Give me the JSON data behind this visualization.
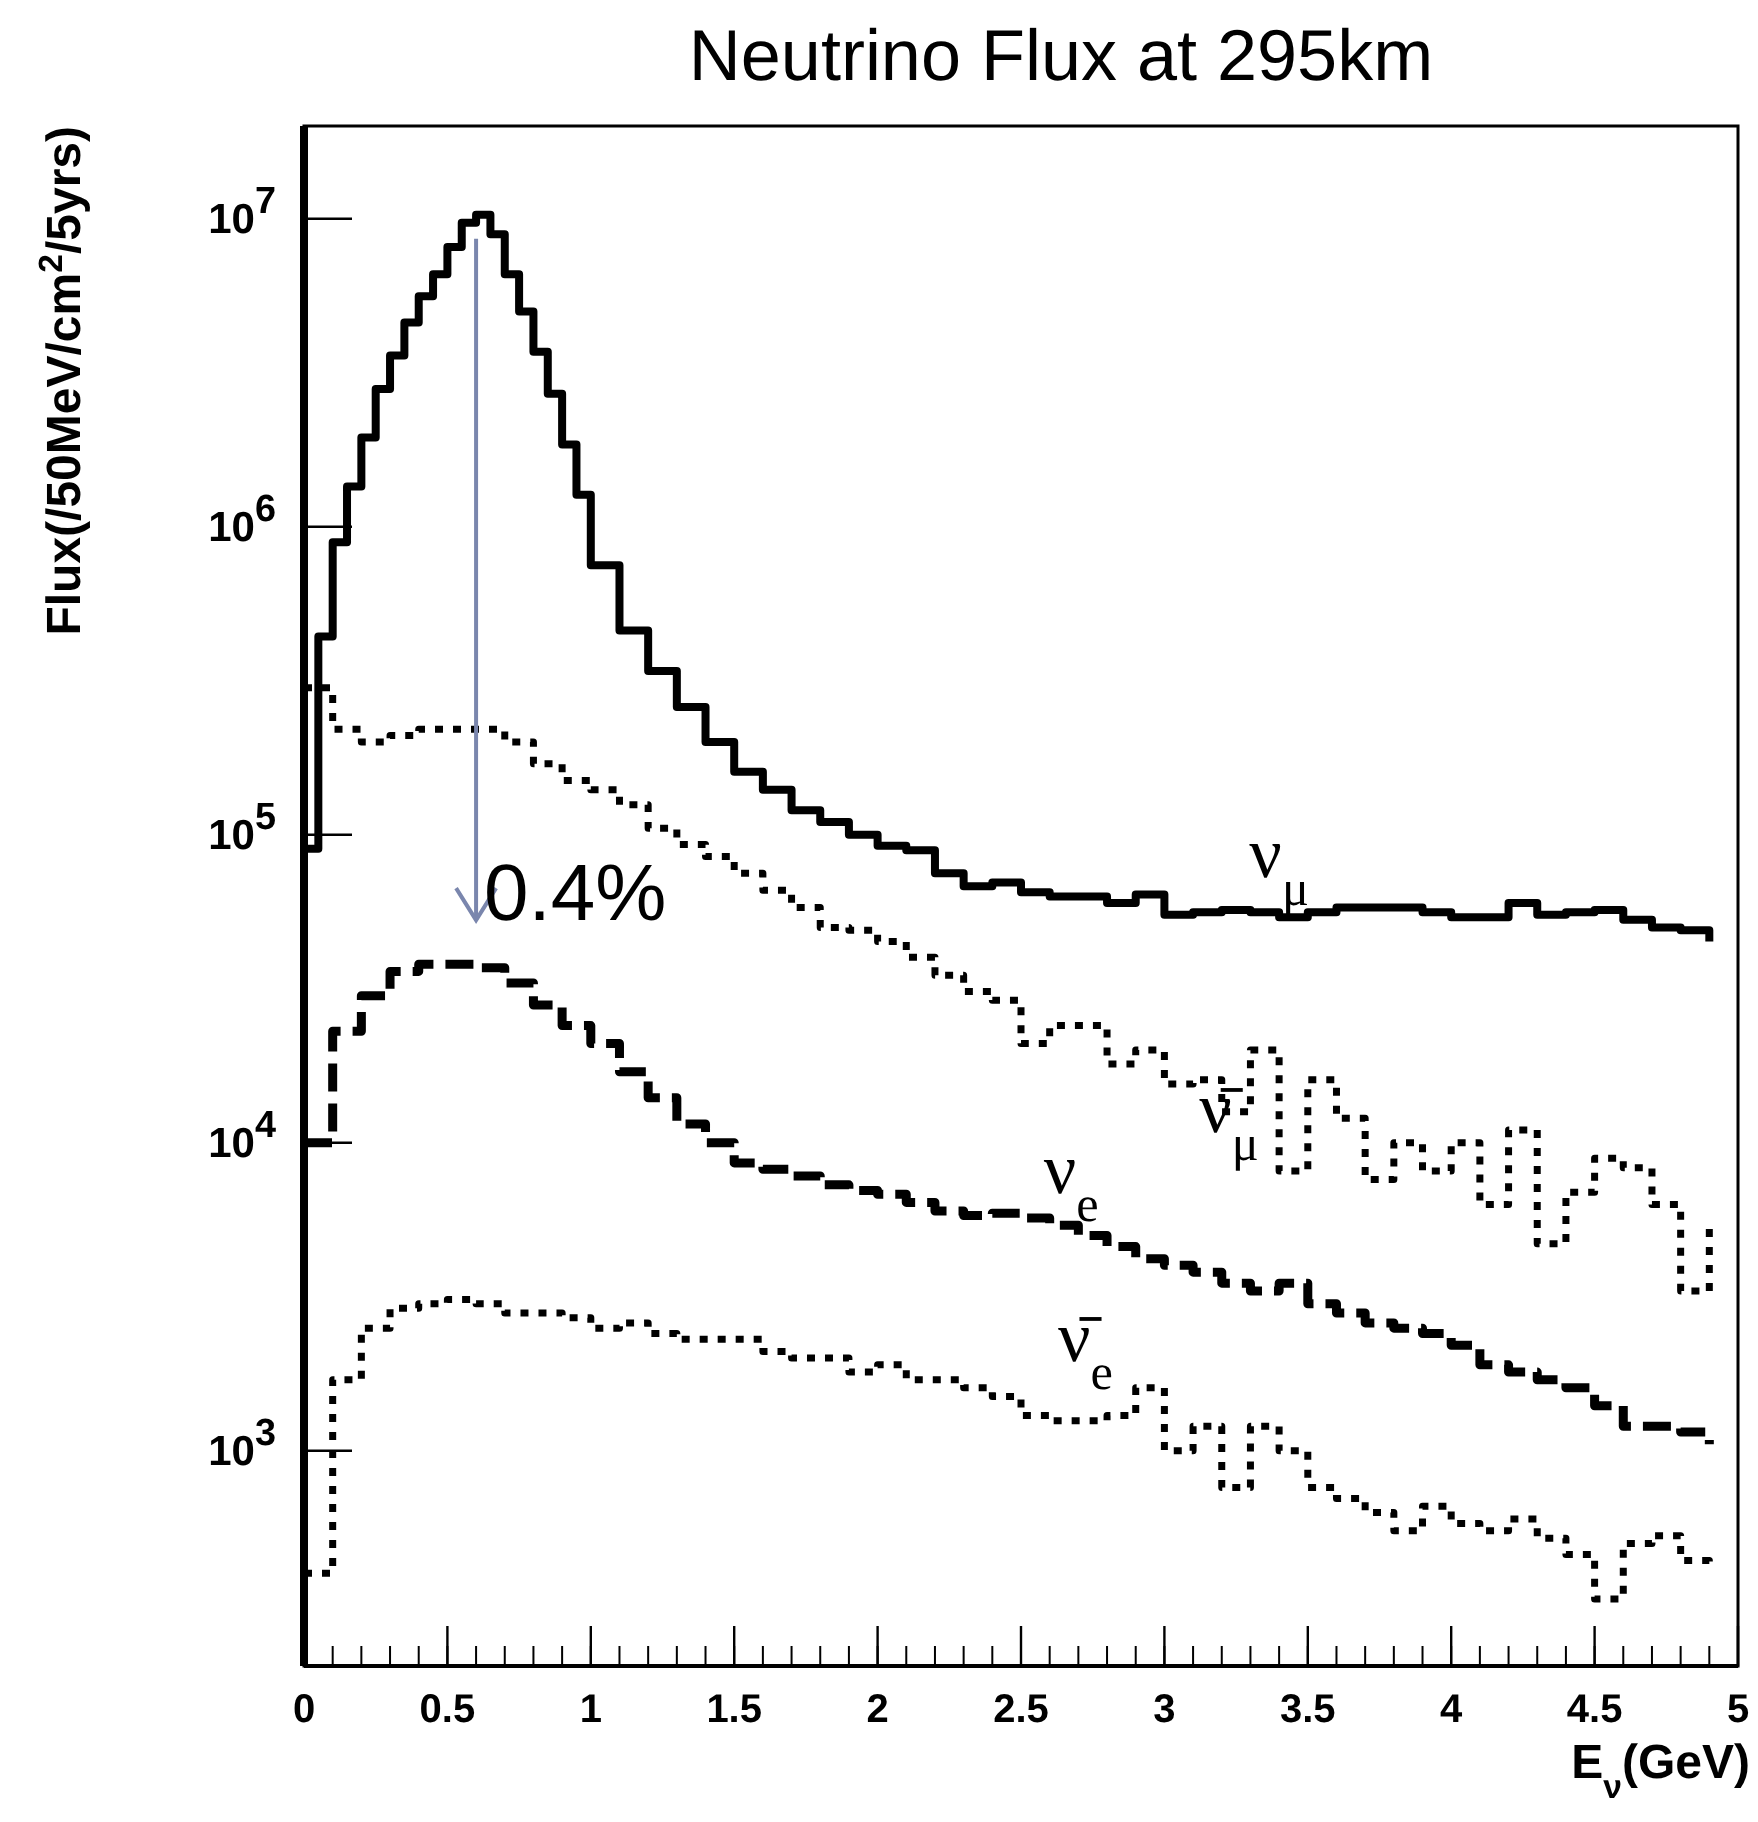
{
  "chart_data": {
    "type": "step",
    "title": "Neutrino Flux at 295km",
    "xlabel": "E$_{ν}$(GeV)",
    "ylabel": "Flux(/50MeV/cm$^{2}$/5yrs)",
    "log": "y",
    "grid": false,
    "xlim": [
      0,
      5
    ],
    "ylim": [
      200,
      20000000
    ],
    "xticks": [
      0,
      0.5,
      1,
      1.5,
      2,
      2.5,
      3,
      3.5,
      4,
      4.5,
      5
    ],
    "yticks": [
      {
        "value": 1000,
        "label": "10$^{3}$"
      },
      {
        "value": 10000,
        "label": "10$^{4}$"
      },
      {
        "value": 100000,
        "label": "10$^{5}$"
      },
      {
        "value": 1000000,
        "label": "10$^{6}$"
      },
      {
        "value": 10000000,
        "label": "10$^{7}$"
      }
    ],
    "annotations": [
      "0.4%"
    ],
    "series": [
      {
        "name": "ν$_{μ}$",
        "color": "#000000",
        "line_style": "solid",
        "x": [
          0,
          0.05,
          0.1,
          0.15,
          0.2,
          0.25,
          0.3,
          0.35,
          0.4,
          0.45,
          0.5,
          0.55,
          0.6,
          0.65,
          0.7,
          0.75,
          0.8,
          0.85,
          0.9,
          0.95,
          1.0,
          1.1,
          1.2,
          1.3,
          1.4,
          1.5,
          1.6,
          1.7,
          1.8,
          1.9,
          2.0,
          2.1,
          2.2,
          2.3,
          2.4,
          2.5,
          2.6,
          2.7,
          2.8,
          2.9,
          3.0,
          3.1,
          3.2,
          3.3,
          3.4,
          3.5,
          3.6,
          3.7,
          3.8,
          3.9,
          4.0,
          4.1,
          4.2,
          4.3,
          4.4,
          4.5,
          4.6,
          4.7,
          4.8,
          4.9
        ],
        "values": [
          90000,
          440000,
          890000,
          1350000,
          1950000,
          2800000,
          3600000,
          4600000,
          5600000,
          6600000,
          8100000,
          9700000,
          10300000,
          8900000,
          6600000,
          5000000,
          3700000,
          2700000,
          1850000,
          1270000,
          750000,
          460000,
          340000,
          260000,
          200000,
          160000,
          140000,
          120000,
          110000,
          100000,
          92000,
          89000,
          75000,
          68000,
          70000,
          65000,
          63000,
          63000,
          60000,
          64000,
          55000,
          56000,
          57000,
          56000,
          54000,
          56000,
          58000,
          58000,
          58000,
          56000,
          54000,
          54000,
          60000,
          55000,
          56000,
          57000,
          53000,
          50000,
          49000,
          45000
        ]
      },
      {
        "name": "ν̄$_{μ}$",
        "color": "#000000",
        "line_style": "dotted",
        "x": [
          0,
          0.1,
          0.2,
          0.3,
          0.4,
          0.5,
          0.6,
          0.7,
          0.8,
          0.9,
          1.0,
          1.1,
          1.2,
          1.3,
          1.4,
          1.5,
          1.6,
          1.7,
          1.8,
          1.9,
          2.0,
          2.1,
          2.2,
          2.3,
          2.4,
          2.5,
          2.6,
          2.7,
          2.8,
          2.9,
          3.0,
          3.1,
          3.2,
          3.3,
          3.4,
          3.5,
          3.6,
          3.7,
          3.8,
          3.9,
          4.0,
          4.1,
          4.2,
          4.3,
          4.4,
          4.5,
          4.6,
          4.7,
          4.8,
          4.9
        ],
        "values": [
          300000,
          220000,
          200000,
          210000,
          220000,
          220000,
          220000,
          200000,
          170000,
          150000,
          140000,
          125000,
          105000,
          93000,
          85000,
          75000,
          66000,
          58000,
          50000,
          49000,
          45000,
          40000,
          35000,
          31000,
          29000,
          21000,
          24000,
          24000,
          18000,
          20000,
          15500,
          16000,
          12600,
          20000,
          8100,
          16000,
          12000,
          7600,
          10000,
          8100,
          10000,
          6300,
          11000,
          4700,
          6900,
          8900,
          8300,
          6300,
          3300,
          5600
        ]
      },
      {
        "name": "ν$_{e}$",
        "color": "#000000",
        "line_style": "dashed",
        "x": [
          0,
          0.1,
          0.2,
          0.3,
          0.4,
          0.5,
          0.6,
          0.7,
          0.8,
          0.9,
          1.0,
          1.1,
          1.2,
          1.3,
          1.4,
          1.5,
          1.6,
          1.7,
          1.8,
          1.9,
          2.0,
          2.1,
          2.2,
          2.3,
          2.4,
          2.5,
          2.6,
          2.7,
          2.8,
          2.9,
          3.0,
          3.1,
          3.2,
          3.3,
          3.4,
          3.5,
          3.6,
          3.7,
          3.8,
          3.9,
          4.0,
          4.1,
          4.2,
          4.3,
          4.4,
          4.5,
          4.6,
          4.7,
          4.8,
          4.9
        ],
        "values": [
          10000,
          23000,
          30000,
          36000,
          38000,
          38000,
          37000,
          33000,
          28000,
          24000,
          21000,
          17000,
          14000,
          11500,
          10000,
          8600,
          8200,
          7800,
          7300,
          7000,
          6800,
          6400,
          6000,
          5800,
          5900,
          5700,
          5400,
          5000,
          4600,
          4200,
          4000,
          3800,
          3500,
          3300,
          3500,
          3000,
          2800,
          2600,
          2500,
          2400,
          2200,
          1900,
          1800,
          1700,
          1600,
          1400,
          1200,
          1200,
          1150,
          1050
        ]
      },
      {
        "name": "ν̄$_{e}$",
        "color": "#000000",
        "line_style": "dotted",
        "x": [
          0,
          0.1,
          0.2,
          0.3,
          0.4,
          0.5,
          0.6,
          0.7,
          0.8,
          0.9,
          1.0,
          1.1,
          1.2,
          1.3,
          1.4,
          1.5,
          1.6,
          1.7,
          1.8,
          1.9,
          2.0,
          2.1,
          2.2,
          2.3,
          2.4,
          2.5,
          2.6,
          2.7,
          2.8,
          2.9,
          3.0,
          3.1,
          3.2,
          3.3,
          3.4,
          3.5,
          3.6,
          3.7,
          3.8,
          3.9,
          4.0,
          4.1,
          4.2,
          4.3,
          4.4,
          4.5,
          4.6,
          4.7,
          4.8,
          4.9
        ],
        "values": [
          400,
          1700,
          2500,
          2900,
          3000,
          3100,
          3000,
          2800,
          2800,
          2700,
          2500,
          2600,
          2400,
          2300,
          2300,
          2300,
          2100,
          2000,
          2000,
          1800,
          1900,
          1700,
          1700,
          1600,
          1500,
          1300,
          1250,
          1250,
          1300,
          1600,
          1000,
          1200,
          760,
          1200,
          1000,
          760,
          700,
          630,
          550,
          660,
          580,
          550,
          600,
          520,
          460,
          330,
          500,
          530,
          440,
          420
        ]
      }
    ]
  }
}
